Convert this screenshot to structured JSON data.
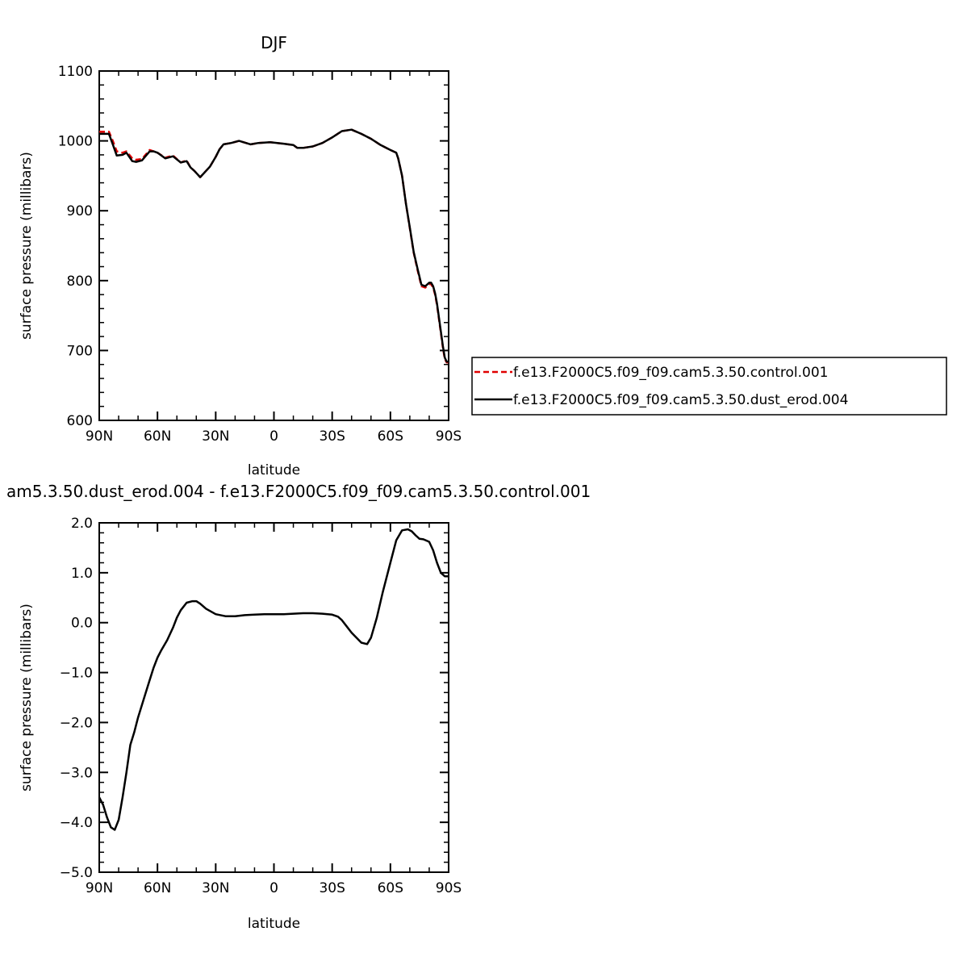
{
  "chart_data": [
    {
      "type": "line",
      "title": "DJF",
      "xlabel": "latitude",
      "ylabel": "surface pressure (millibars)",
      "xlim": [
        90,
        -90
      ],
      "ylim": [
        600,
        1100
      ],
      "xticks": [
        90,
        60,
        30,
        0,
        -30,
        -60,
        -90
      ],
      "xtick_labels": [
        "90N",
        "60N",
        "30N",
        "0",
        "30S",
        "60S",
        "90S"
      ],
      "yticks": [
        600,
        700,
        800,
        900,
        1000,
        1100
      ],
      "ytick_labels": [
        "600",
        "700",
        "800",
        "900",
        "1000",
        "1100"
      ],
      "legend_position": "right",
      "series": [
        {
          "name": "f.e13.F2000C5.f09_f09.cam5.3.50.control.001",
          "color": "#e00000",
          "dash": "dashed",
          "x": [
            90,
            85,
            83,
            81,
            78,
            76,
            73,
            71,
            68,
            64,
            62,
            60,
            56,
            52,
            48,
            45,
            43,
            41,
            38,
            35,
            33,
            30,
            28,
            26,
            22,
            18,
            12,
            8,
            2,
            -5,
            -10,
            -12,
            -15,
            -20,
            -25,
            -30,
            -35,
            -40,
            -45,
            -50,
            -55,
            -60,
            -63,
            -64,
            -66,
            -68,
            -70,
            -72,
            -74,
            -76,
            -78,
            -80,
            -81,
            -82,
            -83,
            -84,
            -85,
            -86,
            -87,
            -88,
            -89,
            -90
          ],
          "y": [
            1013,
            1013,
            1000,
            985,
            983,
            985,
            975,
            973,
            974,
            987,
            985,
            983,
            976,
            979,
            969,
            972,
            962,
            957,
            948,
            957,
            963,
            977,
            988,
            995,
            997,
            1000,
            995,
            997,
            998,
            996,
            994,
            990,
            990,
            992,
            997,
            1005,
            1014,
            1016,
            1010,
            1003,
            994,
            987,
            983,
            975,
            950,
            910,
            875,
            840,
            815,
            792,
            790,
            795,
            795,
            790,
            780,
            765,
            745,
            725,
            705,
            688,
            683,
            683
          ]
        },
        {
          "name": "f.e13.F2000C5.f09_f09.cam5.3.50.dust_erod.004",
          "color": "#000000",
          "dash": "solid",
          "x": [
            90,
            85,
            83,
            81,
            78,
            76,
            73,
            71,
            68,
            64,
            62,
            60,
            56,
            52,
            48,
            45,
            43,
            41,
            38,
            35,
            33,
            30,
            28,
            26,
            22,
            18,
            12,
            8,
            2,
            -5,
            -10,
            -12,
            -15,
            -20,
            -25,
            -30,
            -35,
            -40,
            -45,
            -50,
            -55,
            -60,
            -63,
            -64,
            -66,
            -68,
            -70,
            -72,
            -74,
            -76,
            -78,
            -80,
            -81,
            -82,
            -83,
            -84,
            -85,
            -86,
            -87,
            -88,
            -89,
            -90
          ],
          "y": [
            1010,
            1010,
            995,
            979,
            980,
            983,
            971,
            970,
            972,
            985,
            985,
            983,
            975,
            978,
            969,
            971,
            962,
            957,
            948,
            957,
            963,
            977,
            988,
            995,
            997,
            1000,
            995,
            997,
            998,
            996,
            994,
            990,
            990,
            992,
            997,
            1005,
            1014,
            1016,
            1010,
            1003,
            994,
            987,
            983,
            975,
            950,
            910,
            876,
            841,
            817,
            794,
            792,
            797,
            797,
            792,
            782,
            767,
            747,
            727,
            707,
            690,
            684,
            684
          ]
        }
      ]
    },
    {
      "type": "line",
      "title": "am5.3.50.dust_erod.004 - f.e13.F2000C5.f09_f09.cam5.3.50.control.001",
      "xlabel": "latitude",
      "ylabel": "surface pressure (millibars)",
      "xlim": [
        90,
        -90
      ],
      "ylim": [
        -5.0,
        2.0
      ],
      "xticks": [
        90,
        60,
        30,
        0,
        -30,
        -60,
        -90
      ],
      "xtick_labels": [
        "90N",
        "60N",
        "30N",
        "0",
        "30S",
        "60S",
        "90S"
      ],
      "yticks": [
        -5.0,
        -4.0,
        -3.0,
        -2.0,
        -1.0,
        0.0,
        1.0,
        2.0
      ],
      "ytick_labels": [
        "−5.0",
        "−4.0",
        "−3.0",
        "−2.0",
        "−1.0",
        "0.0",
        "1.0",
        "2.0"
      ],
      "series": [
        {
          "color": "#000000",
          "dash": "solid",
          "x": [
            90,
            88,
            86,
            84,
            82,
            80,
            78,
            76,
            74,
            72,
            70,
            68,
            66,
            64,
            62,
            60,
            58,
            55,
            52,
            50,
            48,
            45,
            42,
            40,
            38,
            35,
            30,
            25,
            20,
            15,
            10,
            5,
            0,
            -5,
            -10,
            -15,
            -20,
            -25,
            -30,
            -33,
            -35,
            -37,
            -40,
            -45,
            -48,
            -50,
            -53,
            -56,
            -60,
            -63,
            -66,
            -69,
            -71,
            -73,
            -75,
            -77,
            -80,
            -82,
            -84,
            -86,
            -88,
            -90
          ],
          "y": [
            -3.5,
            -3.65,
            -3.9,
            -4.1,
            -4.15,
            -3.95,
            -3.5,
            -3.0,
            -2.45,
            -2.2,
            -1.9,
            -1.65,
            -1.4,
            -1.15,
            -0.9,
            -0.7,
            -0.55,
            -0.35,
            -0.1,
            0.1,
            0.25,
            0.4,
            0.43,
            0.43,
            0.38,
            0.28,
            0.17,
            0.13,
            0.13,
            0.15,
            0.16,
            0.17,
            0.17,
            0.17,
            0.18,
            0.19,
            0.19,
            0.18,
            0.16,
            0.12,
            0.05,
            -0.05,
            -0.2,
            -0.4,
            -0.43,
            -0.3,
            0.1,
            0.6,
            1.2,
            1.65,
            1.85,
            1.87,
            1.83,
            1.75,
            1.68,
            1.67,
            1.62,
            1.45,
            1.2,
            1.0,
            0.93,
            0.93
          ]
        }
      ]
    }
  ]
}
